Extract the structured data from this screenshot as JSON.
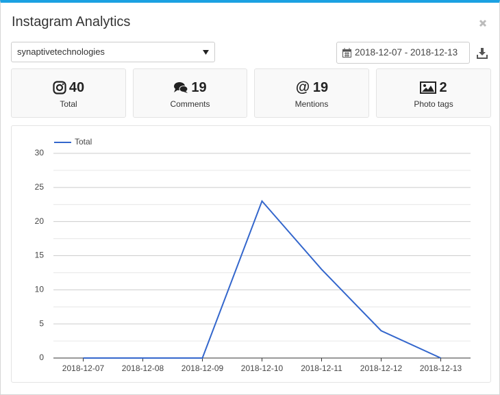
{
  "header": {
    "title": "Instagram Analytics"
  },
  "account_select": "synaptivetechnologies",
  "date_range": "2018-12-07 - 2018-12-13",
  "stats": [
    {
      "value": 40,
      "label": "Total"
    },
    {
      "value": 19,
      "label": "Comments"
    },
    {
      "value": 19,
      "label": "Mentions"
    },
    {
      "value": 2,
      "label": "Photo tags"
    }
  ],
  "chart_data": {
    "type": "line",
    "categories": [
      "2018-12-07",
      "2018-12-08",
      "2018-12-09",
      "2018-12-10",
      "2018-12-11",
      "2018-12-12",
      "2018-12-13"
    ],
    "series": [
      {
        "name": "Total",
        "color": "#3366cc",
        "values": [
          0,
          0,
          0,
          23,
          13,
          4,
          0
        ]
      }
    ],
    "ylim": [
      0,
      30
    ],
    "yticks": [
      0,
      5,
      10,
      15,
      20,
      25,
      30
    ],
    "ygrid": [
      2.5,
      7.5,
      12.5,
      17.5,
      22.5,
      27.5
    ],
    "grid": true,
    "legend": "top-left"
  }
}
